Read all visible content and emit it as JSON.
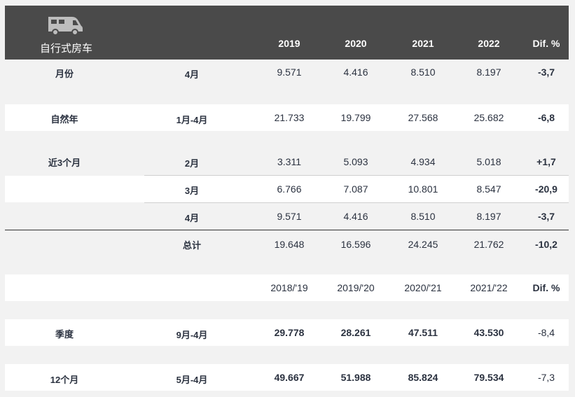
{
  "header": {
    "title": "自行式房车",
    "years": [
      "2019",
      "2020",
      "2021",
      "2022"
    ],
    "dif": "Dif. %",
    "icon": "camper-van-icon"
  },
  "rows": {
    "month": {
      "label": "月份",
      "sub": "4月",
      "values": [
        "9.571",
        "4.416",
        "8.510",
        "8.197"
      ],
      "dif": "-3,7"
    },
    "ytd": {
      "label": "自然年",
      "sub": "1月-4月",
      "values": [
        "21.733",
        "19.799",
        "27.568",
        "25.682"
      ],
      "dif": "-6,8"
    },
    "last3": {
      "label": "近3个月",
      "items": [
        {
          "sub": "2月",
          "values": [
            "3.311",
            "5.093",
            "4.934",
            "5.018"
          ],
          "dif": "+1,7"
        },
        {
          "sub": "3月",
          "values": [
            "6.766",
            "7.087",
            "10.801",
            "8.547"
          ],
          "dif": "-20,9"
        },
        {
          "sub": "4月",
          "values": [
            "9.571",
            "4.416",
            "8.510",
            "8.197"
          ],
          "dif": "-3,7"
        }
      ],
      "total": {
        "sub": "总计",
        "values": [
          "19.648",
          "16.596",
          "24.245",
          "21.762"
        ],
        "dif": "-10,2"
      }
    },
    "season_header": {
      "years": [
        "2018/'19",
        "2019/'20",
        "2020/'21",
        "2021/'22"
      ],
      "dif": "Dif. %"
    },
    "season": {
      "label": "季度",
      "sub": "9月-4月",
      "values": [
        "29.778",
        "28.261",
        "47.511",
        "43.530"
      ],
      "dif": "-8,4"
    },
    "twelve": {
      "label": "12个月",
      "sub": "5月-4月",
      "values": [
        "49.667",
        "51.988",
        "85.824",
        "79.534"
      ],
      "dif": "-7,3"
    }
  }
}
